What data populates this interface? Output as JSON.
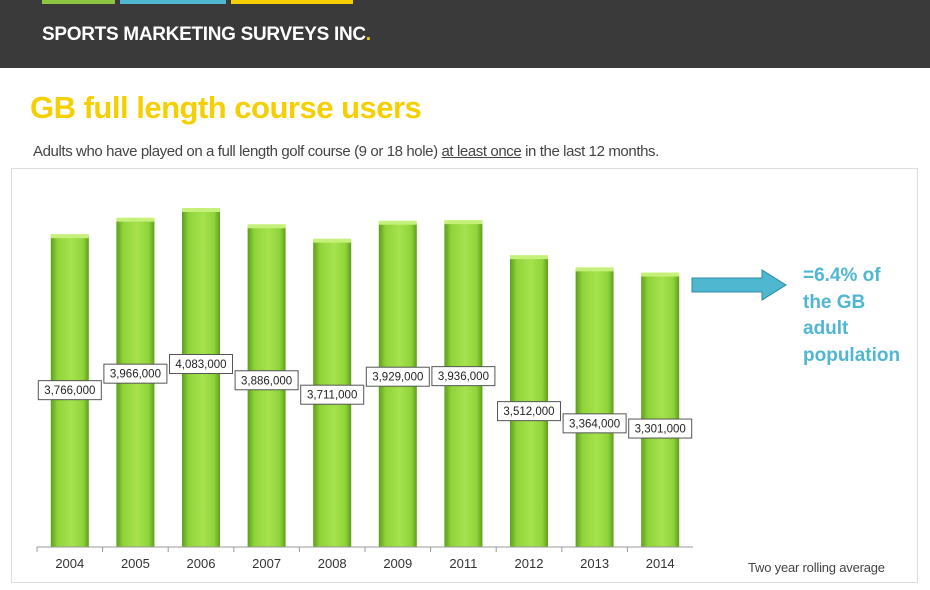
{
  "brand": {
    "name": "SPORTS MARKETING SURVEYS INC",
    "name_suffix": ".",
    "stripe_colors": [
      "#8cc63f",
      "#4fb7d0",
      "#f5cf00"
    ]
  },
  "title": "GB full length course users",
  "subtitle": {
    "before": "Adults who have played on a full length golf course (9 or 18 hole) ",
    "underlined": "at least once",
    "after": " in the last 12 months."
  },
  "callout": {
    "line1": "=6.4% of",
    "line2": "the GB",
    "line3": "adult",
    "line4": "population",
    "arrow_color": "#4fb7d0"
  },
  "footnote": "Two year rolling average",
  "chart_data": {
    "type": "bar",
    "title": "",
    "xlabel": "",
    "ylabel": "",
    "categories": [
      "2004",
      "2005",
      "2006",
      "2007",
      "2008",
      "2009",
      "2011",
      "2012",
      "2013",
      "2014"
    ],
    "values": [
      3766000,
      3966000,
      4083000,
      3886000,
      3711000,
      3929000,
      3936000,
      3512000,
      3364000,
      3301000
    ],
    "data_labels": [
      "3,766,000",
      "3,966,000",
      "4,083,000",
      "3,886,000",
      "3,711,000",
      "3,929,000",
      "3,936,000",
      "3,512,000",
      "3,364,000",
      "3,301,000"
    ],
    "ylim": [
      0,
      4500000
    ],
    "bar_color": "#8fd43a",
    "grid": false,
    "legend": "none"
  }
}
